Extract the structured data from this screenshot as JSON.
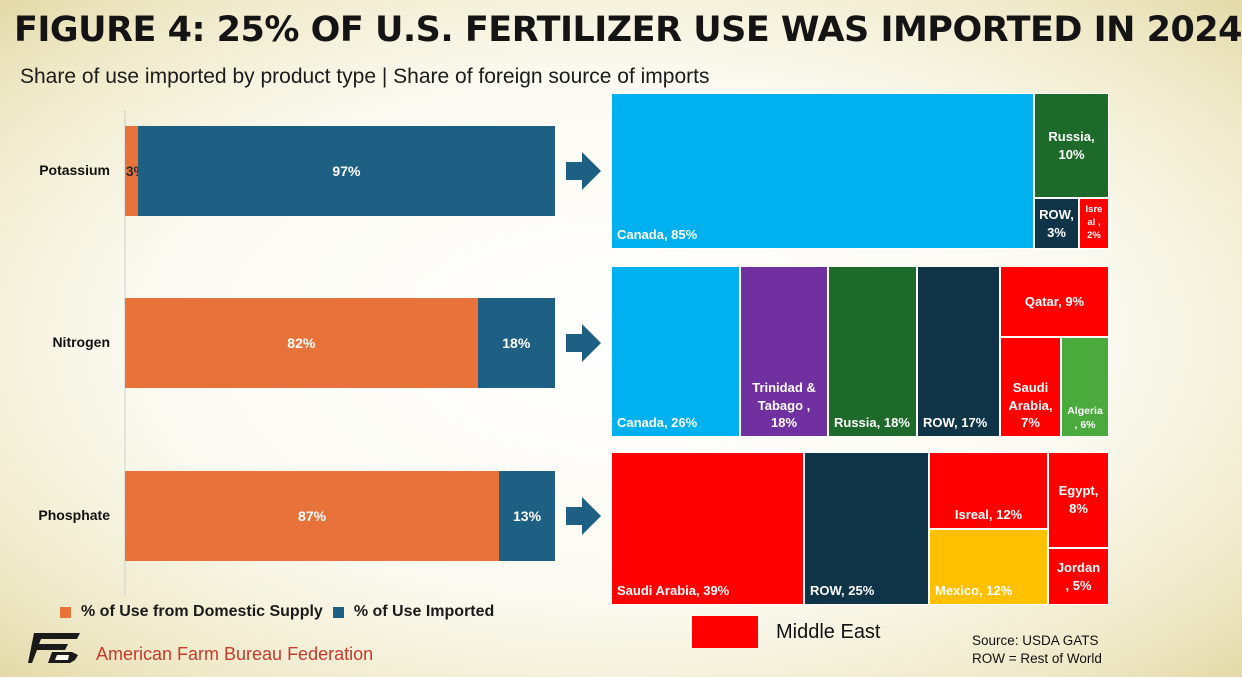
{
  "title": "FIGURE 4: 25% OF U.S. FERTILIZER USE WAS IMPORTED IN 2024",
  "subtitle": "Share of use imported by product type | Share of foreign source of imports",
  "colors": {
    "domestic": "#e8733a",
    "imported": "#1e5f84",
    "canada": "#00b0ef",
    "russia": "#1d6a2a",
    "row": "#0f3447",
    "middle_east": "#fe0000",
    "trinidad": "#7030a0",
    "algeria": "#4aaa3c",
    "mexico": "#ffc000"
  },
  "chart_data": [
    {
      "type": "bar",
      "orientation": "horizontal-stacked",
      "categories": [
        "Potassium",
        "Nitrogen",
        "Phosphate"
      ],
      "series": [
        {
          "name": "% of Use from Domestic Supply",
          "values": [
            3,
            82,
            87
          ],
          "labels": [
            "3%",
            "82%",
            "87%"
          ]
        },
        {
          "name": "% of Use Imported",
          "values": [
            97,
            18,
            13
          ],
          "labels": [
            "97%",
            "18%",
            "13%"
          ]
        }
      ],
      "legend": "bottom-left"
    },
    {
      "type": "treemap",
      "groups": [
        {
          "category": "Potassium",
          "items": [
            {
              "label": "Canada, 85%",
              "value": 85,
              "color": "canada"
            },
            {
              "label": "Russia, 10%",
              "value": 10,
              "color": "russia"
            },
            {
              "label": "ROW, 3%",
              "value": 3,
              "color": "row"
            },
            {
              "label": "Isre al , 2%",
              "value": 2,
              "color": "middle_east"
            }
          ]
        },
        {
          "category": "Nitrogen",
          "items": [
            {
              "label": "Canada, 26%",
              "value": 26,
              "color": "canada"
            },
            {
              "label": "Trinidad & Tabago , 18%",
              "value": 18,
              "color": "trinidad"
            },
            {
              "label": "Russia, 18%",
              "value": 18,
              "color": "russia"
            },
            {
              "label": "ROW, 17%",
              "value": 17,
              "color": "row"
            },
            {
              "label": "Qatar, 9%",
              "value": 9,
              "color": "middle_east"
            },
            {
              "label": "Saudi Arabia, 7%",
              "value": 7,
              "color": "middle_east"
            },
            {
              "label": "Algeria , 6%",
              "value": 6,
              "color": "algeria"
            }
          ]
        },
        {
          "category": "Phosphate",
          "items": [
            {
              "label": "Saudi Arabia, 39%",
              "value": 39,
              "color": "middle_east"
            },
            {
              "label": "ROW, 25%",
              "value": 25,
              "color": "row"
            },
            {
              "label": "Isreal, 12%",
              "value": 12,
              "color": "middle_east"
            },
            {
              "label": "Mexico, 12%",
              "value": 12,
              "color": "mexico"
            },
            {
              "label": "Egypt, 8%",
              "value": 8,
              "color": "middle_east"
            },
            {
              "label": "Jordan , 5%",
              "value": 5,
              "color": "middle_east"
            }
          ]
        }
      ],
      "legend": {
        "label": "Middle East",
        "color": "middle_east"
      }
    }
  ],
  "source": {
    "line1": "Source: USDA GATS",
    "line2": "ROW = Rest of World"
  },
  "organization": "American Farm Bureau Federation",
  "icons": {
    "logo": "afbf-fb-logo-icon",
    "arrow": "right-arrow-icon"
  }
}
